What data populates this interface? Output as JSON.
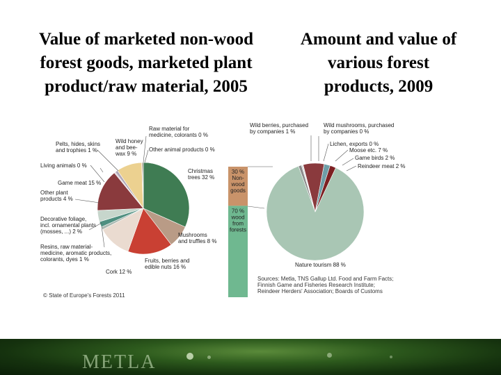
{
  "titles": {
    "left": [
      "Value of marketed non-wood",
      "forest goods, marketed plant",
      "product/raw material, 2005"
    ],
    "right": [
      "Amount and value of",
      "various forest",
      "products, 2009"
    ]
  },
  "chart_data": [
    {
      "type": "pie",
      "unit": "%",
      "slices": [
        {
          "label": [
            "Christmas",
            "trees 32 %"
          ],
          "value": 32,
          "color": "#3f7c53"
        },
        {
          "label": [
            "Mushrooms",
            "and truffles 8 %"
          ],
          "value": 8,
          "color": "#b99b86"
        },
        {
          "label": [
            "Fruits, berries and",
            "edible nuts 16 %"
          ],
          "value": 16,
          "color": "#c94033"
        },
        {
          "label": [
            "Cork 12 %"
          ],
          "value": 12,
          "color": "#eadbd0"
        },
        {
          "label": [
            "Resins, raw material-",
            "medicine, aromatic products,",
            "colorants, dyes 1 %"
          ],
          "value": 1,
          "color": "#a9b8b0"
        },
        {
          "label": [
            "Decorative foliage,",
            "incl. ornamental plants",
            "(mosses, ...) 2 %"
          ],
          "value": 2,
          "color": "#4f8f80"
        },
        {
          "label": [
            "Other plant",
            "products 4 %"
          ],
          "value": 4,
          "color": "#c7d6cc"
        },
        {
          "label": [
            "Game meat 15 %"
          ],
          "value": 15,
          "color": "#8a3a3d"
        },
        {
          "label": [
            "Living animals 0 %"
          ],
          "value": 0.4,
          "color": "#d8c8d0"
        },
        {
          "label": [
            "Pelts, hides, skins",
            "and trophies 1 %"
          ],
          "value": 1,
          "color": "#b1a8b8"
        },
        {
          "label": [
            "Wild honey",
            "and bee-",
            "wax 9 %"
          ],
          "value": 9,
          "color": "#ecd190"
        },
        {
          "label": [
            "Raw material for",
            "medicine, colorants 0 %"
          ],
          "value": 0.3,
          "color": "#9d8a5a"
        },
        {
          "label": [
            "Other animal products 0 %"
          ],
          "value": 0.3,
          "color": "#6a6a6a"
        }
      ],
      "credit": "© State of Europe's Forests 2011"
    },
    {
      "type": "bar",
      "stacked": true,
      "segments": [
        {
          "label": [
            "30 %",
            "Non-",
            "wood",
            "goods"
          ],
          "value": 30,
          "color": "#c9936a"
        },
        {
          "label": [
            "70 %",
            "wood",
            "from",
            "forests"
          ],
          "value": 70,
          "color": "#6fb890"
        }
      ]
    },
    {
      "type": "pie",
      "unit": "%",
      "slices": [
        {
          "label": [
            "Nature tourism 88 %"
          ],
          "value": 88,
          "color": "#a9c6b4"
        },
        {
          "label": [
            "Wild berries, purchased",
            "by companies 1 %"
          ],
          "value": 1,
          "color": "#8a8a8a"
        },
        {
          "label": [
            "Wild mushrooms, purchased",
            "by companies 0 %"
          ],
          "value": 0.3,
          "color": "#bbbbbb"
        },
        {
          "label": [
            "Lichen, exports 0 %"
          ],
          "value": 0.3,
          "color": "#d5d5d5"
        },
        {
          "label": [
            "Moose etc. 7 %"
          ],
          "value": 7,
          "color": "#8a3a3d"
        },
        {
          "label": [
            "Game birds 2 %"
          ],
          "value": 2,
          "color": "#6e9ea7"
        },
        {
          "label": [
            "Reindeer meat 2 %"
          ],
          "value": 2,
          "color": "#7d2022"
        }
      ],
      "sources": [
        "Sources: Metla, TNS Gallup Ltd. Food and Farm Facts;",
        "Finnish Game and Fisheries Research Institute;",
        "Reindeer Herders' Association; Boards of Customs"
      ]
    }
  ],
  "footer": {
    "logo": "METLA"
  }
}
